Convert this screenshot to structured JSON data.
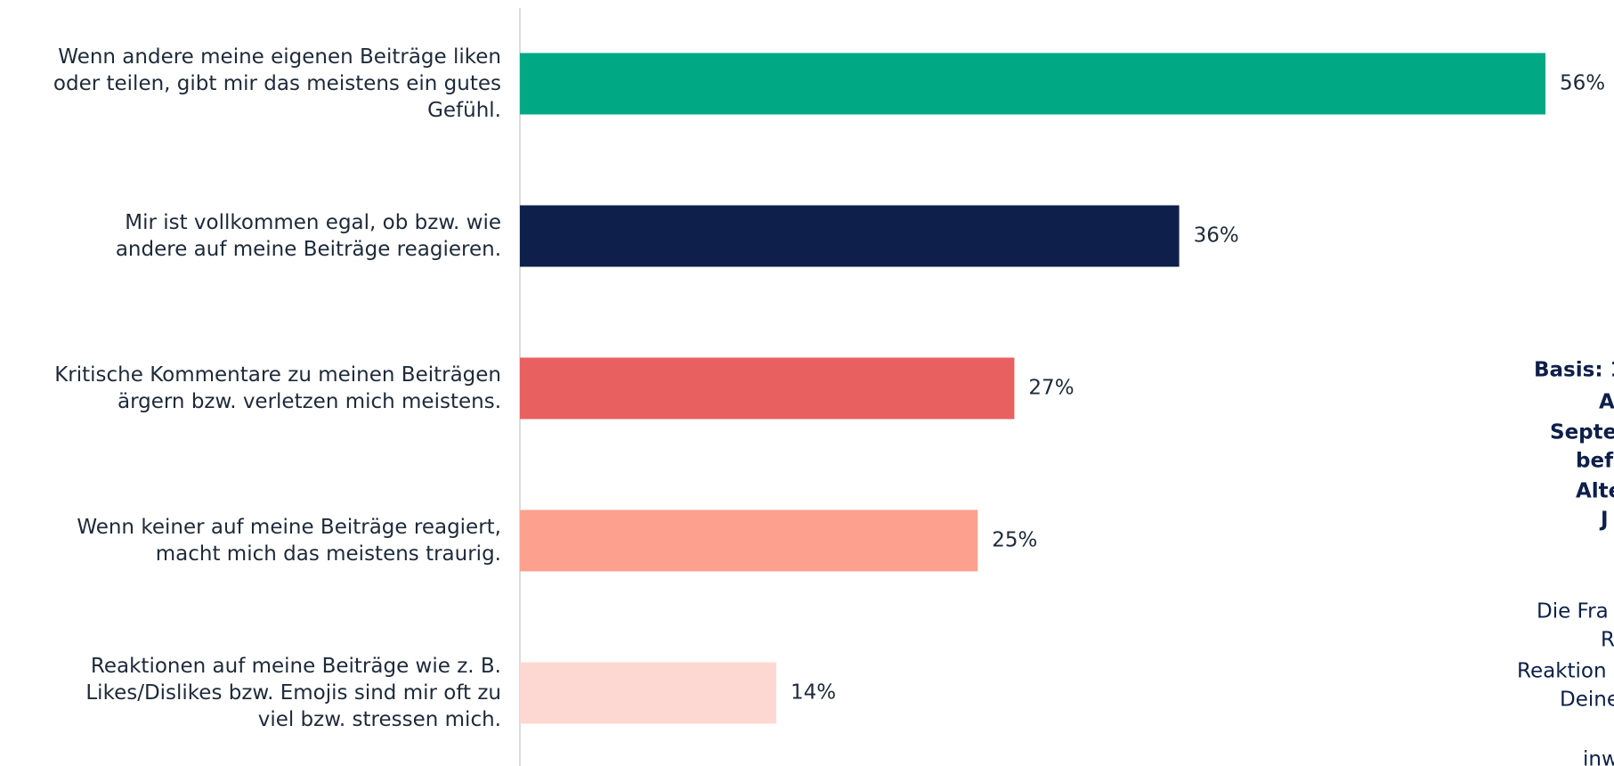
{
  "chart_data": {
    "type": "bar",
    "orientation": "horizontal",
    "categories": [
      "Wenn andere meine eigenen Beiträge liken\noder teilen, gibt mir das meistens ein gutes\nGefühl.",
      "Mir ist vollkommen egal, ob bzw. wie\nandere auf meine Beiträge reagieren.",
      "Kritische Kommentare zu meinen Beiträgen\närgern bzw. verletzen mich meistens.",
      "Wenn keiner auf meine Beiträge reagiert,\nmacht mich das meistens traurig.",
      "Reaktionen auf meine Beiträge wie z. B.\nLikes/Dislikes bzw. Emojis sind mir oft zu\nviel bzw. stressen mich."
    ],
    "values": [
      56,
      36,
      27,
      25,
      14
    ],
    "value_labels": [
      "56%",
      "36%",
      "27%",
      "25%",
      "14%"
    ],
    "colors": [
      "#00a984",
      "#0d1f4a",
      "#e96060",
      "#fda08e",
      "#fdd8d2"
    ]
  },
  "side_note": {
    "bold_lines": [
      "Basis: 1",
      "A",
      "Septe",
      "bef",
      "Alte",
      "J"
    ],
    "lines": [
      "Die Fra",
      "R",
      "Reaktion",
      "Deine",
      "inw"
    ]
  }
}
